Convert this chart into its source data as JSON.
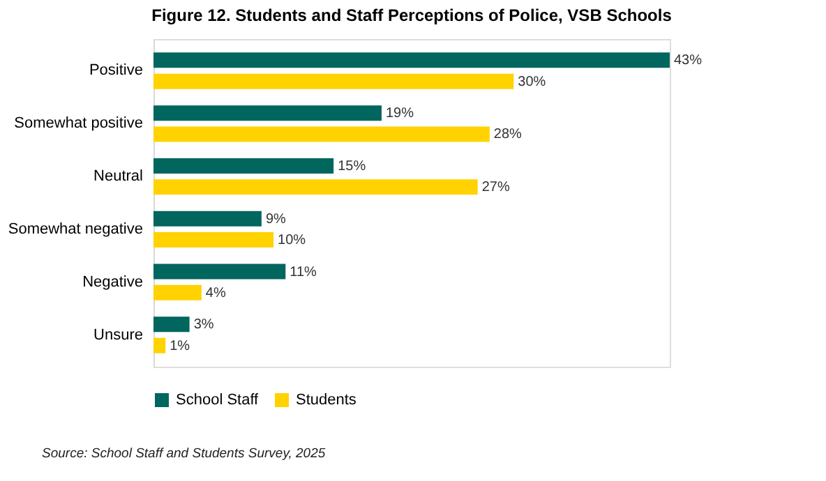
{
  "chart_data": {
    "type": "bar",
    "orientation": "horizontal",
    "title": "Figure 12. Students and Staff Perceptions of Police, VSB Schools",
    "categories": [
      "Positive",
      "Somewhat positive",
      "Neutral",
      "Somewhat negative",
      "Negative",
      "Unsure"
    ],
    "series": [
      {
        "name": "School Staff",
        "color": "#00665e",
        "values": [
          43,
          19,
          15,
          9,
          11,
          3
        ],
        "value_labels": [
          "43%",
          "19%",
          "15%",
          "9%",
          "11%",
          "3%"
        ]
      },
      {
        "name": "Students",
        "color": "#ffd200",
        "values": [
          30,
          28,
          27,
          10,
          4,
          1
        ],
        "value_labels": [
          "30%",
          "28%",
          "27%",
          "10%",
          "4%",
          "1%"
        ]
      }
    ],
    "legend": "bottom",
    "grid": false,
    "annotations": [
      "Source: School Staff and Students Survey, 2025"
    ]
  }
}
